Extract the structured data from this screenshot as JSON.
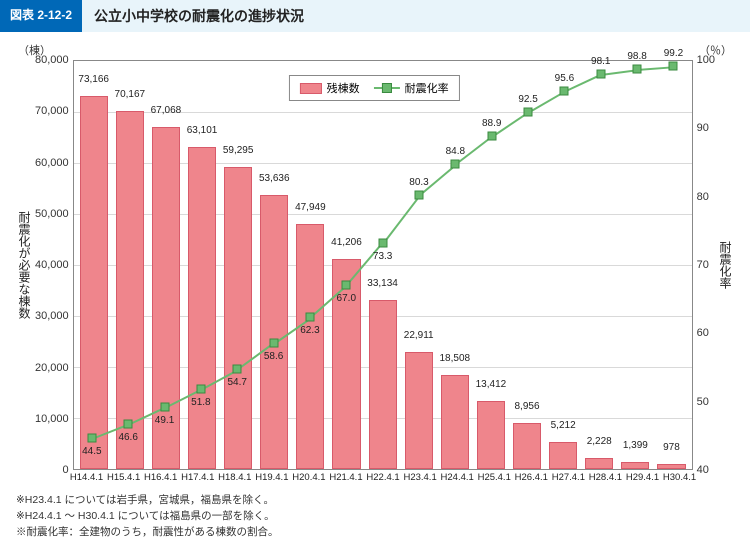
{
  "header": {
    "tag": "図表 2-12-2",
    "title": "公立小中学校の耐震化の進捗状況"
  },
  "units": {
    "left": "（棟）",
    "right": "（％）"
  },
  "axis_labels": {
    "left": "耐震化が必要な棟数",
    "right": "耐震化率"
  },
  "legend": {
    "bars": "残棟数",
    "line": "耐震化率"
  },
  "y_left": {
    "min": 0,
    "max": 80000,
    "ticks": [
      80000,
      70000,
      60000,
      50000,
      40000,
      30000,
      20000,
      10000,
      0
    ]
  },
  "y_right": {
    "min": 40,
    "max": 100,
    "ticks": [
      100,
      90,
      80,
      70,
      60,
      50,
      40
    ]
  },
  "chart": {
    "type": "bar+line",
    "bar_color": "#ef858c",
    "bar_border": "#d85a6a",
    "line_color": "#6ab96f",
    "marker_border": "#3a8a3f",
    "grid_color": "#d9d9d9",
    "background_color": "#ffffff",
    "bar_width": 0.78,
    "categories": [
      "H14.4.1",
      "H15.4.1",
      "H16.4.1",
      "H17.4.1",
      "H18.4.1",
      "H19.4.1",
      "H20.4.1",
      "H21.4.1",
      "H22.4.1",
      "H23.4.1",
      "H24.4.1",
      "H25.4.1",
      "H26.4.1",
      "H27.4.1",
      "H28.4.1",
      "H29.4.1",
      "H30.4.1"
    ],
    "bars": [
      73166,
      70167,
      67068,
      63101,
      59295,
      53636,
      47949,
      41206,
      33134,
      22911,
      18508,
      13412,
      8956,
      5212,
      2228,
      1399,
      978
    ],
    "bar_labels": [
      "73,166",
      "70,167",
      "67,068",
      "63,101",
      "59,295",
      "53,636",
      "47,949",
      "41,206",
      "33,134",
      "22,911",
      "18,508",
      "13,412",
      "8,956",
      "5,212",
      "2,228",
      "1,399",
      "978"
    ],
    "line": [
      44.5,
      46.6,
      49.1,
      51.8,
      54.7,
      58.6,
      62.3,
      67.0,
      73.3,
      80.3,
      84.8,
      88.9,
      92.5,
      95.6,
      98.1,
      98.8,
      99.2
    ],
    "line_labels": [
      "44.5",
      "46.6",
      "49.1",
      "51.8",
      "54.7",
      "58.6",
      "62.3",
      "67.0",
      "73.3",
      "80.3",
      "84.8",
      "88.9",
      "92.5",
      "95.6",
      "98.1",
      "98.8",
      "99.2"
    ]
  },
  "footnotes": [
    "※H23.4.1 については岩手県，宮城県，福島県を除く。",
    "※H24.4.1 ～ H30.4.1 については福島県の一部を除く。",
    "※耐震化率：全建物のうち，耐震性がある棟数の割合。"
  ]
}
